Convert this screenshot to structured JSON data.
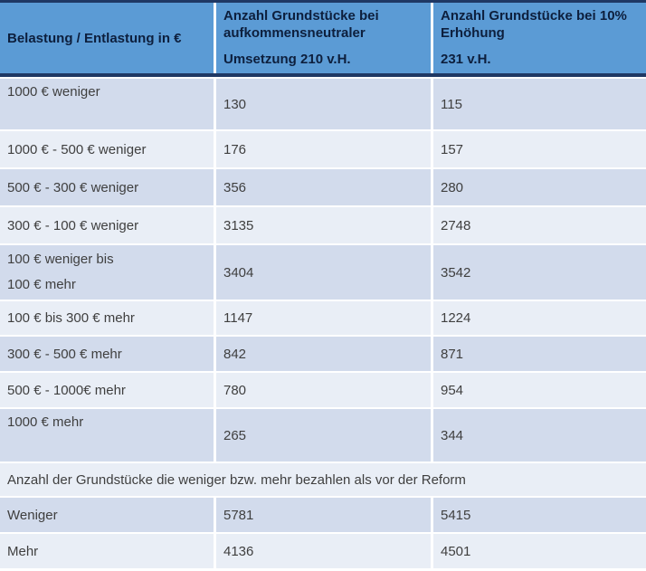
{
  "table": {
    "header": {
      "col1": "Belastung / Entlastung in €",
      "col2_top": "Anzahl Grundstücke bei aufkommensneutraler",
      "col2_bottom": "Umsetzung 210 v.H.",
      "col3_top": "Anzahl Grundstücke bei 10% Erhöhung",
      "col3_bottom": "231 v.H."
    },
    "columns": [
      "Belastung / Entlastung in €",
      "Anzahl Grundstücke bei aufkommensneutraler Umsetzung 210 v.H.",
      "Anzahl Grundstücke bei 10% Erhöhung 231 v.H."
    ],
    "rows": [
      {
        "label": "1000 € weniger",
        "neutral": "130",
        "increase": "115"
      },
      {
        "label": "1000 € - 500 € weniger",
        "neutral": "176",
        "increase": "157"
      },
      {
        "label": "500 € - 300 € weniger",
        "neutral": "356",
        "increase": "280"
      },
      {
        "label": "300 € - 100 € weniger",
        "neutral": "3135",
        "increase": "2748"
      },
      {
        "label": "100 € weniger bis",
        "label2": "100 € mehr",
        "neutral": "3404",
        "increase": "3542"
      },
      {
        "label": "100 € bis 300 € mehr",
        "neutral": "1147",
        "increase": "1224"
      },
      {
        "label": "300 € - 500 € mehr",
        "neutral": "842",
        "increase": "871"
      },
      {
        "label": "500 € - 1000€ mehr",
        "neutral": "780",
        "increase": "954"
      },
      {
        "label": "1000 € mehr",
        "neutral": "265",
        "increase": "344"
      }
    ],
    "summary_caption": "Anzahl der Grundstücke die weniger bzw. mehr bezahlen als vor der Reform",
    "summary_rows": [
      {
        "label": "Weniger",
        "neutral": "5781",
        "increase": "5415"
      },
      {
        "label": "Mehr",
        "neutral": "4136",
        "increase": "4501"
      }
    ]
  },
  "colors": {
    "header_background": "#5b9bd5",
    "header_border": "#1f3864",
    "header_text": "#0d1f3d",
    "band_dark": "#d2dbec",
    "band_light": "#e9eef6",
    "body_text": "#3f3f3f",
    "separator": "#ffffff"
  }
}
